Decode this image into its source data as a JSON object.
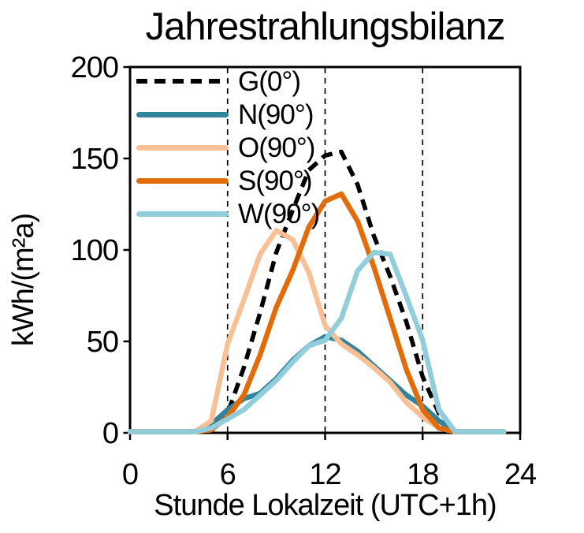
{
  "title": "Jahrestrahlungsbilanz",
  "chart_data": {
    "type": "line",
    "title": "Jahrestrahlungsbilanz",
    "xlabel": "Stunde Lokalzeit (UTC+1h)",
    "ylabel": "kWh/(m²a)",
    "xlim": [
      0,
      24
    ],
    "ylim": [
      0,
      200
    ],
    "x_ticks": [
      0,
      6,
      12,
      18,
      24
    ],
    "y_ticks": [
      0,
      50,
      100,
      150,
      200
    ],
    "gridlines_x": [
      6,
      12,
      18
    ],
    "grid_style": "vertical dashed black lines",
    "legend_position": "upper-left inside plot",
    "x": [
      0,
      1,
      2,
      3,
      4,
      5,
      6,
      7,
      8,
      9,
      10,
      11,
      12,
      13,
      14,
      15,
      16,
      17,
      18,
      19,
      20,
      21,
      22,
      23
    ],
    "series": [
      {
        "name": "G(0°)",
        "color": "#000000",
        "style": "dashed",
        "values": [
          0,
          0,
          0,
          0,
          0,
          0,
          10,
          35,
          65,
          98,
          121,
          143,
          151,
          153,
          135,
          107,
          85,
          60,
          30,
          10,
          0,
          0,
          0,
          0
        ]
      },
      {
        "name": "N(90°)",
        "color": "#31849B",
        "style": "solid",
        "values": [
          0,
          0,
          0,
          0,
          0,
          4,
          12,
          18,
          21,
          29,
          39,
          47,
          52,
          50,
          44,
          36,
          28,
          20,
          14,
          6,
          0,
          0,
          0,
          0
        ]
      },
      {
        "name": "O(90°)",
        "color": "#FAC095",
        "style": "solid",
        "values": [
          0,
          0,
          0,
          0,
          0,
          6,
          48,
          72,
          97,
          110,
          105,
          87,
          58,
          48,
          42,
          35,
          27,
          16,
          8,
          2,
          0,
          0,
          0,
          0
        ]
      },
      {
        "name": "S(90°)",
        "color": "#E36C0A",
        "style": "solid",
        "values": [
          0,
          0,
          0,
          0,
          0,
          1,
          8,
          20,
          42,
          68,
          88,
          112,
          126,
          130,
          115,
          90,
          62,
          34,
          12,
          2,
          0,
          0,
          0,
          0
        ]
      },
      {
        "name": "W(90°)",
        "color": "#92CDDC",
        "style": "solid",
        "values": [
          0,
          0,
          0,
          0,
          0,
          2,
          7,
          12,
          20,
          28,
          38,
          47,
          50,
          62,
          88,
          98,
          97,
          74,
          50,
          12,
          0,
          0,
          0,
          0
        ]
      }
    ]
  }
}
